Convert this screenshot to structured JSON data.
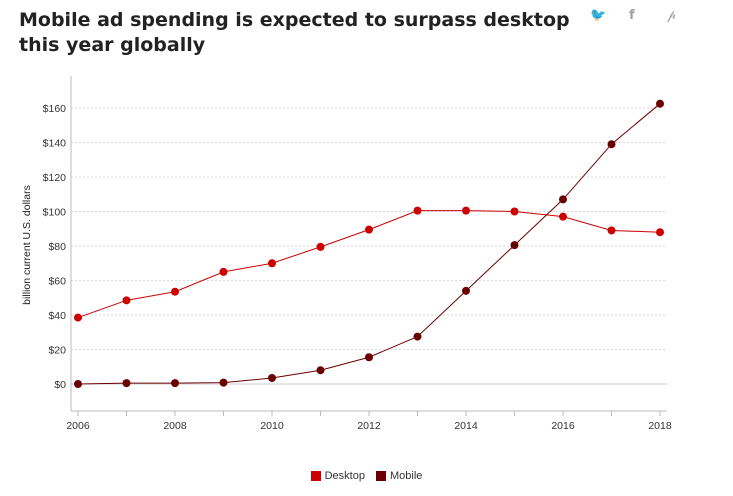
{
  "header": {
    "title": "Mobile ad spending is expected to surpass desktop this year globally",
    "share_twitter": "🐦",
    "share_facebook": "f",
    "share_pinterest": "𝓅"
  },
  "chart_data": {
    "type": "line",
    "title": "Mobile ad spending is expected to surpass desktop this year globally",
    "ylabel": "billion current U.S. dollars",
    "xlabel": "",
    "x": [
      2006,
      2007,
      2008,
      2009,
      2010,
      2011,
      2012,
      2013,
      2014,
      2015,
      2016,
      2017,
      2018
    ],
    "x_ticks": [
      "2006",
      "2008",
      "2010",
      "2012",
      "2014",
      "2016",
      "2018"
    ],
    "y_ticks": [
      "$0",
      "$20",
      "$40",
      "$60",
      "$80",
      "$100",
      "$120",
      "$140",
      "$160"
    ],
    "ylim": [
      -15,
      178
    ],
    "grid": true,
    "legend_position": "bottom",
    "series": [
      {
        "name": "Desktop",
        "color": "#cc0000",
        "values": [
          38.5,
          48.5,
          53.5,
          65,
          70,
          79.5,
          89.5,
          100.5,
          100.5,
          100,
          97,
          89,
          88
        ]
      },
      {
        "name": "Mobile",
        "color": "#6b0000",
        "values": [
          0,
          0.5,
          0.5,
          0.8,
          3.5,
          8,
          15.5,
          27.5,
          54,
          80.5,
          107,
          139,
          162.5
        ]
      }
    ]
  }
}
